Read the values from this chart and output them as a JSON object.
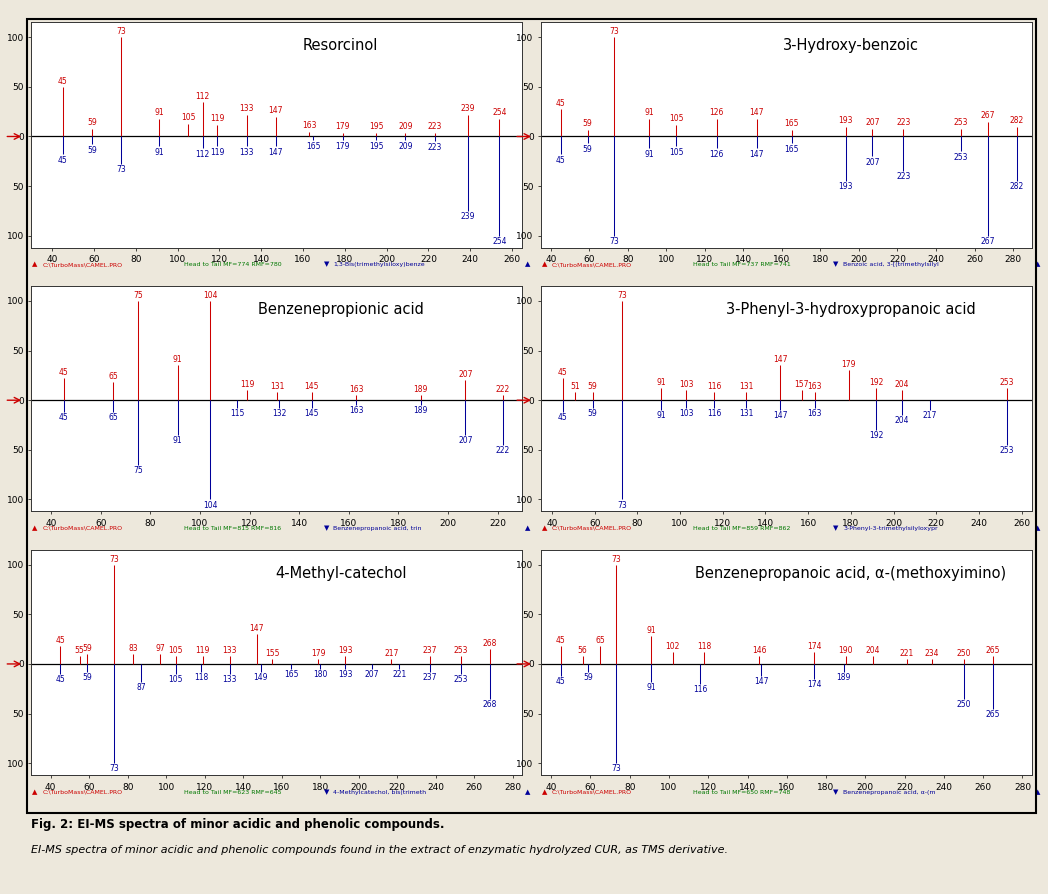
{
  "panels": [
    {
      "title": "Resorcinol",
      "xlim": [
        30,
        265
      ],
      "xticks": [
        40,
        60,
        80,
        100,
        120,
        140,
        160,
        180,
        200,
        220,
        240,
        260
      ],
      "red_peaks": [
        [
          45,
          50
        ],
        [
          59,
          8
        ],
        [
          73,
          100
        ],
        [
          91,
          18
        ],
        [
          105,
          13
        ],
        [
          112,
          35
        ],
        [
          119,
          12
        ],
        [
          133,
          22
        ],
        [
          147,
          20
        ],
        [
          163,
          5
        ],
        [
          179,
          4
        ],
        [
          195,
          4
        ],
        [
          209,
          4
        ],
        [
          223,
          4
        ],
        [
          239,
          22
        ],
        [
          254,
          18
        ]
      ],
      "blue_peaks": [
        [
          45,
          18
        ],
        [
          59,
          8
        ],
        [
          73,
          28
        ],
        [
          91,
          10
        ],
        [
          112,
          12
        ],
        [
          119,
          10
        ],
        [
          133,
          10
        ],
        [
          147,
          10
        ],
        [
          165,
          4
        ],
        [
          179,
          4
        ],
        [
          195,
          4
        ],
        [
          209,
          4
        ],
        [
          223,
          5
        ],
        [
          239,
          75
        ],
        [
          254,
          100
        ]
      ],
      "sb_red": "C:\\TurboMass\\CAMEL.PRO",
      "sb_green": "Head to Tail MF=774 RMF=780",
      "sb_blue": "1,3-Bis(trimethylsiloxy)benze"
    },
    {
      "title": "3-Hydroxy-benzoic",
      "xlim": [
        35,
        290
      ],
      "xticks": [
        40,
        60,
        80,
        100,
        120,
        140,
        160,
        180,
        200,
        220,
        240,
        260,
        280
      ],
      "red_peaks": [
        [
          45,
          28
        ],
        [
          59,
          7
        ],
        [
          73,
          100
        ],
        [
          91,
          18
        ],
        [
          105,
          12
        ],
        [
          126,
          18
        ],
        [
          147,
          18
        ],
        [
          165,
          7
        ],
        [
          193,
          10
        ],
        [
          207,
          8
        ],
        [
          223,
          8
        ],
        [
          253,
          8
        ],
        [
          267,
          15
        ],
        [
          282,
          10
        ]
      ],
      "blue_peaks": [
        [
          45,
          18
        ],
        [
          59,
          7
        ],
        [
          73,
          100
        ],
        [
          91,
          12
        ],
        [
          105,
          10
        ],
        [
          126,
          12
        ],
        [
          147,
          12
        ],
        [
          165,
          7
        ],
        [
          193,
          45
        ],
        [
          207,
          20
        ],
        [
          223,
          35
        ],
        [
          253,
          15
        ],
        [
          267,
          100
        ],
        [
          282,
          45
        ]
      ],
      "sb_red": "C:\\TurboMass\\CAMEL.PRO",
      "sb_green": "Head to Tail MF=737 RMF=741",
      "sb_blue": "Benzoic acid, 3-[(trimethylsilyl"
    },
    {
      "title": "Benzenepropionic acid",
      "xlim": [
        32,
        230
      ],
      "xticks": [
        40,
        60,
        80,
        100,
        120,
        140,
        160,
        180,
        200,
        220
      ],
      "red_peaks": [
        [
          45,
          22
        ],
        [
          65,
          18
        ],
        [
          75,
          100
        ],
        [
          91,
          35
        ],
        [
          104,
          100
        ],
        [
          119,
          10
        ],
        [
          131,
          8
        ],
        [
          145,
          8
        ],
        [
          163,
          5
        ],
        [
          189,
          5
        ],
        [
          207,
          20
        ],
        [
          222,
          5
        ]
      ],
      "blue_peaks": [
        [
          45,
          12
        ],
        [
          65,
          12
        ],
        [
          75,
          65
        ],
        [
          91,
          35
        ],
        [
          104,
          100
        ],
        [
          115,
          8
        ],
        [
          132,
          8
        ],
        [
          145,
          8
        ],
        [
          163,
          5
        ],
        [
          189,
          5
        ],
        [
          207,
          35
        ],
        [
          222,
          45
        ]
      ],
      "sb_red": "C:\\TurboMass\\CAMEL.PRO",
      "sb_green": "Head to Tail MF=815 RMF=816",
      "sb_blue": "Benzenepropanoic acid, trin"
    },
    {
      "title": "3-Phenyl-3-hydroxypropanoic acid",
      "xlim": [
        35,
        265
      ],
      "xticks": [
        40,
        60,
        80,
        100,
        120,
        140,
        160,
        180,
        200,
        220,
        240,
        260
      ],
      "red_peaks": [
        [
          45,
          22
        ],
        [
          51,
          8
        ],
        [
          59,
          8
        ],
        [
          73,
          100
        ],
        [
          91,
          12
        ],
        [
          103,
          10
        ],
        [
          116,
          8
        ],
        [
          131,
          8
        ],
        [
          147,
          35
        ],
        [
          157,
          10
        ],
        [
          163,
          8
        ],
        [
          179,
          30
        ],
        [
          192,
          12
        ],
        [
          204,
          10
        ],
        [
          253,
          12
        ]
      ],
      "blue_peaks": [
        [
          45,
          12
        ],
        [
          59,
          8
        ],
        [
          73,
          100
        ],
        [
          91,
          10
        ],
        [
          103,
          8
        ],
        [
          116,
          8
        ],
        [
          131,
          8
        ],
        [
          147,
          10
        ],
        [
          163,
          8
        ],
        [
          192,
          30
        ],
        [
          204,
          15
        ],
        [
          217,
          10
        ],
        [
          253,
          45
        ]
      ],
      "sb_red": "C:\\TurboMass\\CAMEL.PRO",
      "sb_green": "Head to Tail MF=859 RMF=862",
      "sb_blue": "3-Phenyl-3-trimethylsilyloxypr"
    },
    {
      "title": "4-Methyl-catechol",
      "xlim": [
        30,
        285
      ],
      "xticks": [
        40,
        60,
        80,
        100,
        120,
        140,
        160,
        180,
        200,
        220,
        240,
        260,
        280
      ],
      "red_peaks": [
        [
          45,
          18
        ],
        [
          55,
          8
        ],
        [
          59,
          10
        ],
        [
          73,
          100
        ],
        [
          83,
          10
        ],
        [
          97,
          10
        ],
        [
          105,
          8
        ],
        [
          119,
          8
        ],
        [
          133,
          8
        ],
        [
          147,
          30
        ],
        [
          155,
          5
        ],
        [
          179,
          5
        ],
        [
          193,
          8
        ],
        [
          217,
          5
        ],
        [
          237,
          8
        ],
        [
          253,
          8
        ],
        [
          268,
          15
        ]
      ],
      "blue_peaks": [
        [
          45,
          10
        ],
        [
          59,
          8
        ],
        [
          73,
          100
        ],
        [
          87,
          18
        ],
        [
          105,
          10
        ],
        [
          118,
          8
        ],
        [
          133,
          10
        ],
        [
          149,
          8
        ],
        [
          165,
          5
        ],
        [
          180,
          5
        ],
        [
          193,
          5
        ],
        [
          207,
          5
        ],
        [
          221,
          5
        ],
        [
          237,
          8
        ],
        [
          253,
          10
        ],
        [
          268,
          35
        ]
      ],
      "sb_red": "C:\\TurboMass\\CAMEL.PRO",
      "sb_green": "Head to Tail MF=623 RMF=645",
      "sb_blue": "4-Methylcatechol, bis(trimeth"
    },
    {
      "title": "Benzenepropanoic acid, α-(methoxyimino)",
      "xlim": [
        35,
        285
      ],
      "xticks": [
        40,
        60,
        80,
        100,
        120,
        140,
        160,
        180,
        200,
        220,
        240,
        260,
        280
      ],
      "red_peaks": [
        [
          45,
          18
        ],
        [
          56,
          8
        ],
        [
          65,
          18
        ],
        [
          73,
          100
        ],
        [
          91,
          28
        ],
        [
          102,
          12
        ],
        [
          118,
          12
        ],
        [
          146,
          8
        ],
        [
          174,
          12
        ],
        [
          190,
          8
        ],
        [
          204,
          8
        ],
        [
          221,
          5
        ],
        [
          234,
          5
        ],
        [
          250,
          5
        ],
        [
          265,
          8
        ]
      ],
      "blue_peaks": [
        [
          45,
          12
        ],
        [
          59,
          8
        ],
        [
          73,
          100
        ],
        [
          91,
          18
        ],
        [
          116,
          20
        ],
        [
          147,
          12
        ],
        [
          174,
          15
        ],
        [
          189,
          8
        ],
        [
          250,
          35
        ],
        [
          265,
          45
        ]
      ],
      "sb_red": "C:\\TurboMass\\CAMEL.PRO",
      "sb_green": "Head to Tail MF=650 RMF=748",
      "sb_blue": "Benzenepropanoic acid, α-(m"
    }
  ],
  "fig_caption": "Fig. 2: EI-MS spectra of minor acidic and phenolic compounds.",
  "fig_subcaption": "EI-MS spectra of minor acidic and phenolic compounds found in the extract of enzymatic hydrolyzed CUR, as TMS derivative.",
  "bg_color": "#ede8dc",
  "panel_bg": "#ffffff",
  "red_color": "#cc0000",
  "blue_color": "#000099",
  "green_color": "#007700",
  "sb_bg": "#c8c4bc",
  "label_fontsize": 5.5,
  "tick_fontsize": 6.5,
  "title_fontsize": 10.5,
  "ymax": 115,
  "ymin": -112
}
